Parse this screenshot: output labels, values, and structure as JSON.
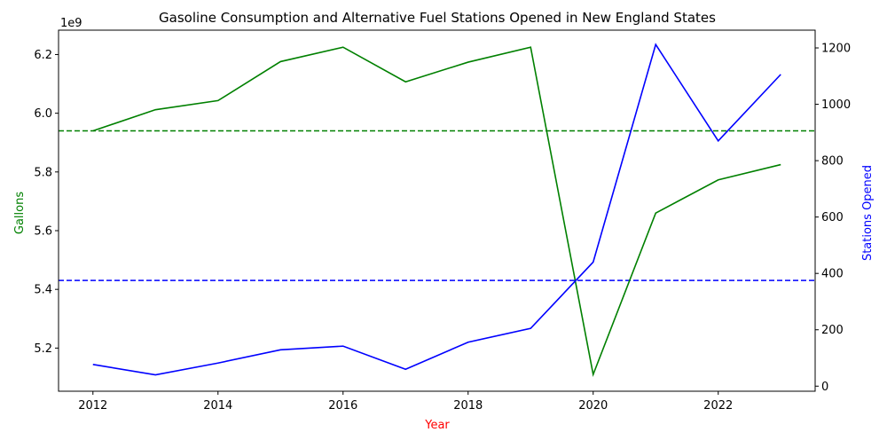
{
  "chart_data": {
    "type": "line",
    "title": "Gasoline Consumption and Alternative Fuel Stations Opened in New England States",
    "xlabel": "Year",
    "x": [
      2012,
      2013,
      2014,
      2015,
      2016,
      2017,
      2018,
      2019,
      2020,
      2021,
      2022,
      2023
    ],
    "xlim": [
      2011.45,
      2023.55
    ],
    "xticks": [
      2012,
      2014,
      2016,
      2018,
      2020,
      2022
    ],
    "colors": {
      "xlabel": "#ff0000",
      "left": "#008000",
      "right": "#0000ff"
    },
    "left_axis": {
      "ylabel": "Gallons",
      "offset_text": "1e9",
      "scale": 1000000000,
      "ylim": [
        5053000000,
        6283000000
      ],
      "ticks": [
        5200000000,
        5400000000,
        5600000000,
        5800000000,
        6000000000,
        6200000000
      ],
      "tick_labels": [
        "5.2",
        "5.4",
        "5.6",
        "5.8",
        "6.0",
        "6.2"
      ]
    },
    "right_axis": {
      "ylabel": "Stations Opened",
      "ylim": [
        -18,
        1263
      ],
      "ticks": [
        0,
        200,
        400,
        600,
        800,
        1000,
        1200
      ],
      "tick_labels": [
        "0",
        "200",
        "400",
        "600",
        "800",
        "1000",
        "1200"
      ]
    },
    "series": [
      {
        "axis": "left",
        "color": "#008000",
        "values": [
          5940000000,
          6012000000,
          6043000000,
          6176000000,
          6225000000,
          6107000000,
          6174000000,
          6225000000,
          5110000000,
          5660000000,
          5773000000,
          5825000000
        ]
      },
      {
        "axis": "right",
        "color": "#0000ff",
        "values": [
          77,
          40,
          82,
          129,
          142,
          60,
          156,
          205,
          440,
          1212,
          870,
          1106
        ]
      }
    ],
    "reference_lines": [
      {
        "axis": "left",
        "y": 5940000000,
        "style": "dashed",
        "color": "#008000"
      },
      {
        "axis": "right",
        "y": 375,
        "style": "dashed",
        "color": "#0000ff"
      }
    ],
    "grid": false
  }
}
